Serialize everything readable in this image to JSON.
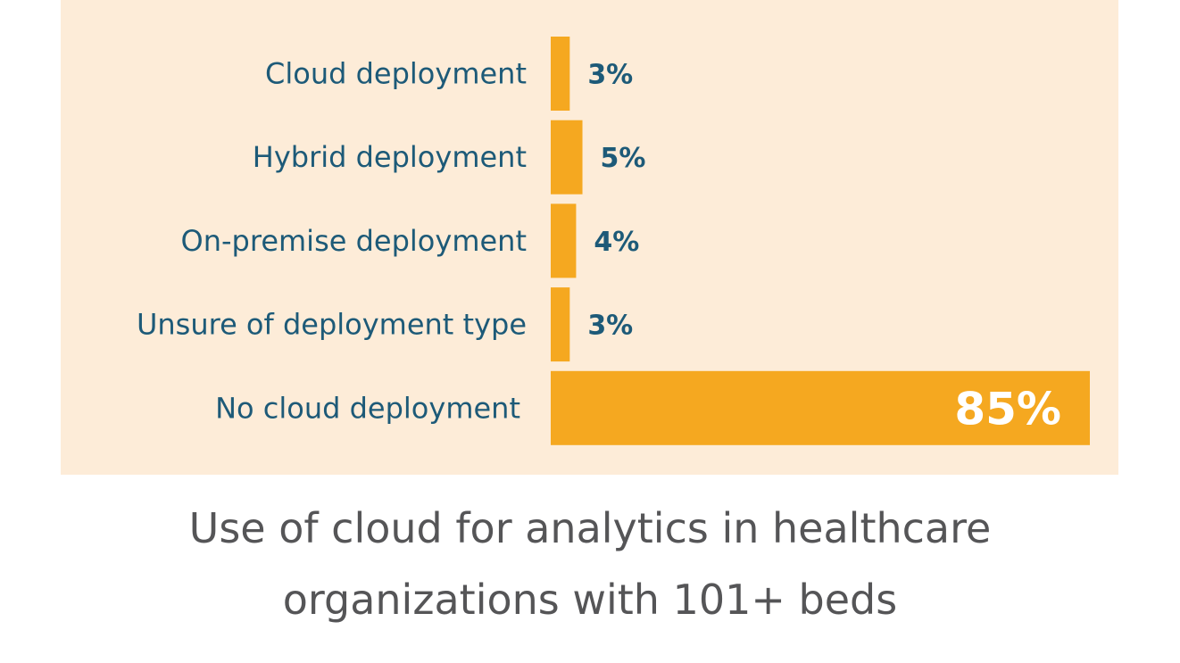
{
  "chart_data": {
    "type": "bar",
    "orientation": "horizontal",
    "title_lines": [
      "Use of cloud for analytics in healthcare",
      "organizations with 101+ beds"
    ],
    "categories": [
      "Cloud deployment",
      "Hybrid deployment",
      "On-premise deployment",
      "Unsure of deployment type",
      "No cloud deployment"
    ],
    "values": [
      3,
      5,
      4,
      3,
      85
    ],
    "value_labels": [
      "3%",
      "5%",
      "4%",
      "3%",
      "85%"
    ],
    "unit": "%",
    "xlim": [
      0,
      85
    ],
    "grid": false,
    "colors": {
      "bar": "#F5A820",
      "panel_background": "#FDECD8",
      "label": "#1D5A78",
      "title": "#555557"
    }
  }
}
